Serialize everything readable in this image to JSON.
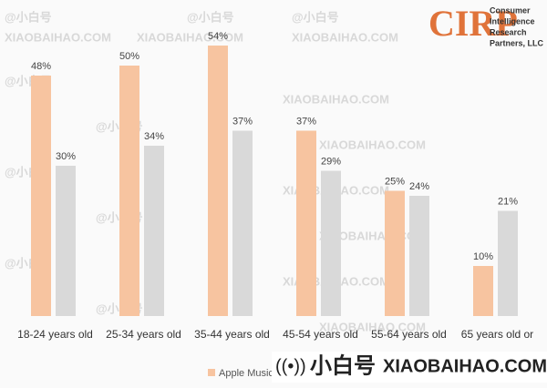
{
  "chart_data": {
    "type": "bar",
    "categories": [
      "18-24 years old",
      "25-34 years old",
      "35-44 years old",
      "45-54 years old",
      "55-64 years old",
      "65 years old or"
    ],
    "series": [
      {
        "name": "Apple Music",
        "color": "#f7c4a0",
        "values": [
          48,
          50,
          54,
          37,
          25,
          10
        ],
        "value_labels": [
          "48%",
          "50%",
          "54%",
          "37%",
          "25%",
          "10%"
        ]
      },
      {
        "color": "#d9d9d9",
        "values": [
          30,
          34,
          37,
          29,
          24,
          21
        ],
        "value_labels": [
          "30%",
          "34%",
          "37%",
          "29%",
          "24%",
          "21%"
        ]
      }
    ]
  },
  "logo": {
    "mark": "CIRP",
    "lines": [
      "Consumer",
      "Intelligence",
      "Research",
      "Partners, LLC"
    ]
  },
  "watermark": {
    "handle": "@小白号",
    "site": "XIAOBAIHAO.COM",
    "banner_cn": "小白号",
    "banner_site": "XIAOBAIHAO.COM"
  }
}
